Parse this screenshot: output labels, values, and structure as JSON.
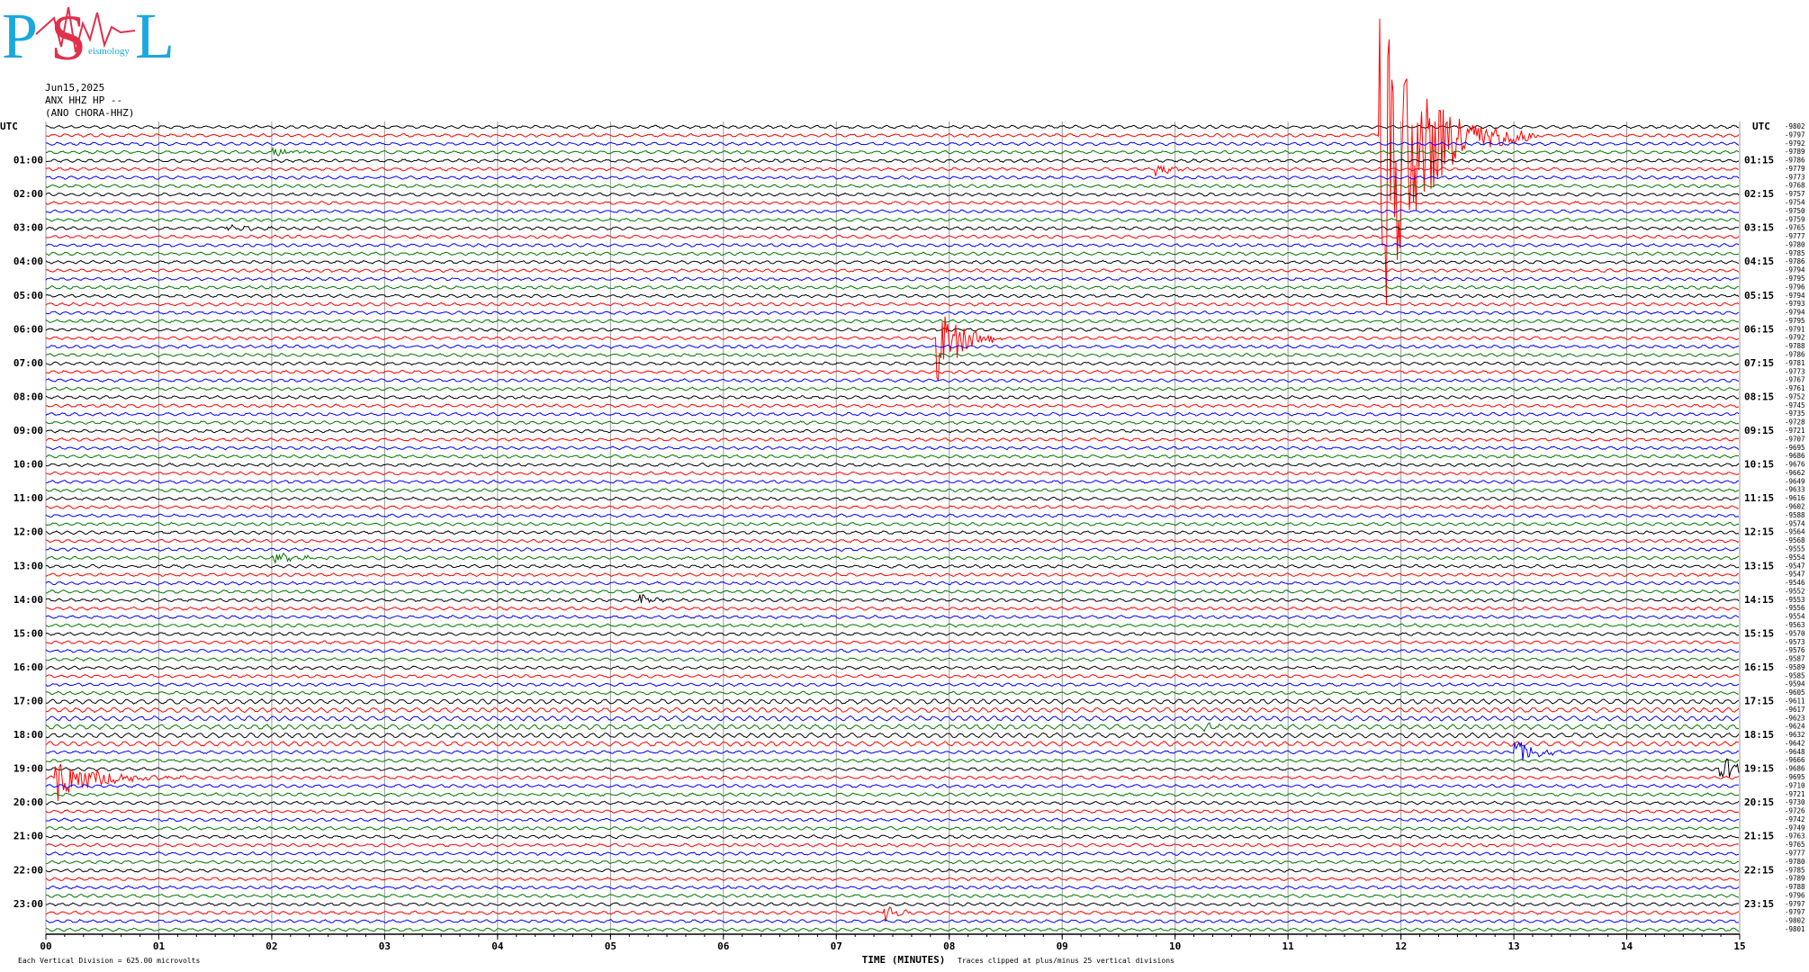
{
  "chart_data": {
    "type": "helicorder",
    "logo": {
      "letters": [
        "P",
        "S",
        "L"
      ],
      "subtitle": "eismology"
    },
    "date": "Jun15,2025",
    "station": "ANX HHZ HP --",
    "location": "(ANO CHORA-HHZ)",
    "left_axis_label": "UTC",
    "right_axis_label": "UTC",
    "left_hours": [
      "01:00",
      "02:00",
      "03:00",
      "04:00",
      "05:00",
      "06:00",
      "07:00",
      "08:00",
      "09:00",
      "10:00",
      "11:00",
      "12:00",
      "13:00",
      "14:00",
      "15:00",
      "16:00",
      "17:00",
      "18:00",
      "19:00",
      "20:00",
      "21:00",
      "22:00",
      "23:00"
    ],
    "right_hours": [
      "01:15",
      "02:15",
      "03:15",
      "04:15",
      "05:15",
      "06:15",
      "07:15",
      "08:15",
      "09:15",
      "10:15",
      "11:15",
      "12:15",
      "13:15",
      "14:15",
      "15:15",
      "16:15",
      "17:15",
      "18:15",
      "19:15",
      "20:15",
      "21:15",
      "22:15",
      "23:15"
    ],
    "xlim": [
      0,
      15
    ],
    "xticks": [
      {
        "value": 0,
        "label": "00"
      },
      {
        "value": 1,
        "label": "01"
      },
      {
        "value": 2,
        "label": "02"
      },
      {
        "value": 3,
        "label": "03"
      },
      {
        "value": 4,
        "label": "04"
      },
      {
        "value": 5,
        "label": "05"
      },
      {
        "value": 6,
        "label": "06"
      },
      {
        "value": 7,
        "label": "07"
      },
      {
        "value": 8,
        "label": "08"
      },
      {
        "value": 9,
        "label": "09"
      },
      {
        "value": 10,
        "label": "10"
      },
      {
        "value": 11,
        "label": "11"
      },
      {
        "value": 12,
        "label": "12"
      },
      {
        "value": 13,
        "label": "13"
      },
      {
        "value": 14,
        "label": "14"
      },
      {
        "value": 15,
        "label": "15"
      }
    ],
    "x_axis_title": "TIME (MINUTES)",
    "scale_note": "Each Vertical Division =  625.00 microvolts",
    "clip_note": "Traces clipped at plus/minus 25 vertical divisions",
    "trace_colors": [
      "#000000",
      "#ff0000",
      "#0000ff",
      "#007700"
    ],
    "offsets": [
      -9802,
      -9797,
      -9792,
      -9789,
      -9786,
      -9779,
      -9773,
      -9768,
      -9757,
      -9754,
      -9750,
      -9759,
      -9765,
      -9777,
      -9780,
      -9785,
      -9786,
      -9794,
      -9795,
      -9796,
      -9794,
      -9793,
      -9794,
      -9795,
      -9791,
      -9792,
      -9788,
      -9786,
      -9781,
      -9773,
      -9767,
      -9761,
      -9752,
      -9745,
      -9735,
      -9728,
      -9721,
      -9707,
      -9695,
      -9686,
      -9676,
      -9662,
      -9649,
      -9633,
      -9616,
      -9602,
      -9588,
      -9574,
      -9564,
      -9568,
      -9555,
      -9554,
      -9547,
      -9547,
      -9546,
      -9552,
      -9553,
      -9556,
      -9554,
      -9563,
      -9570,
      -9573,
      -9576,
      -9587,
      -9589,
      -9585,
      -9594,
      -9605,
      -9611,
      -9617,
      -9623,
      -9624,
      -9632,
      -9642,
      -9648,
      -9666,
      -9686,
      -9695,
      -9710,
      -9721,
      -9730,
      -9726,
      -9742,
      -9749,
      -9763,
      -9765,
      -9777,
      -9780,
      -9785,
      -9789,
      -9788,
      -9796,
      -9797,
      -9797,
      -9802,
      -9801
    ]
  }
}
